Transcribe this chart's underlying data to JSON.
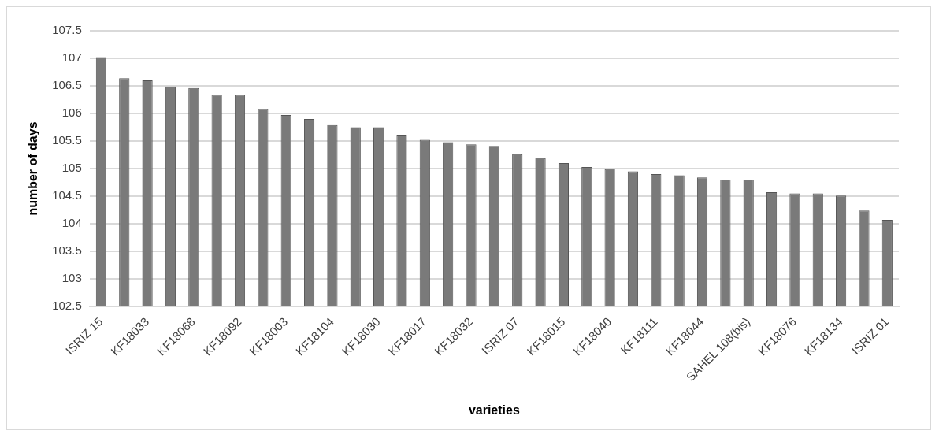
{
  "chart_data": {
    "type": "bar",
    "xlabel": "varieties",
    "ylabel": "number of days",
    "categories": [
      "ISRIZ 15",
      null,
      "KF18033",
      null,
      "KF18068",
      null,
      "KF18092",
      null,
      "KF18003",
      null,
      "KF18104",
      null,
      "KF18030",
      null,
      "KF18017",
      null,
      "KF18032",
      null,
      "ISRIZ 07",
      null,
      "KF18015",
      null,
      "KF18040",
      null,
      "KF18111",
      null,
      "KF18044",
      null,
      "SAHEL 108(bis)",
      null,
      "KF18076",
      null,
      "KF18134",
      null,
      "ISRIZ 01"
    ],
    "values": [
      107.02,
      106.64,
      106.6,
      106.49,
      106.46,
      106.34,
      106.34,
      106.08,
      105.97,
      105.9,
      105.79,
      105.75,
      105.75,
      105.6,
      105.52,
      105.48,
      105.44,
      105.41,
      105.26,
      105.19,
      105.1,
      105.03,
      104.99,
      104.95,
      104.9,
      104.88,
      104.84,
      104.8,
      104.8,
      104.57,
      104.55,
      104.55,
      104.51,
      104.24,
      104.07
    ],
    "color": "#7a7a7a",
    "ylim": [
      102.5,
      107.5
    ],
    "yticks": [
      102.5,
      103,
      103.5,
      104,
      104.5,
      105,
      105.5,
      106,
      106.5,
      107,
      107.5
    ],
    "grid": "y",
    "legend": false
  }
}
